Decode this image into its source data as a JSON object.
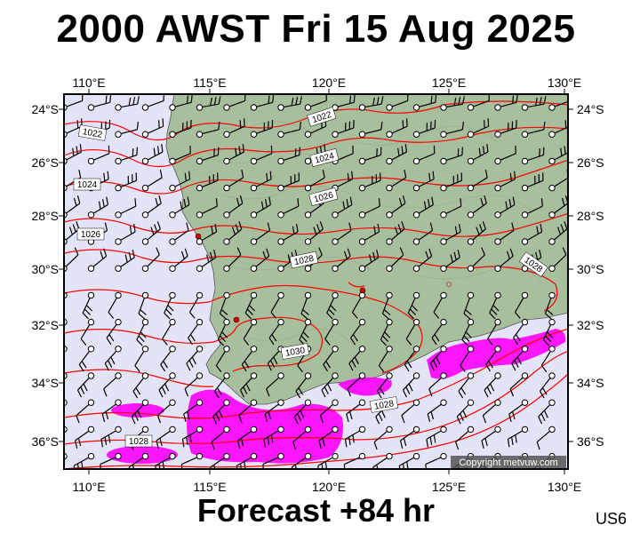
{
  "header": {
    "title": "2000 AWST Fri 15 Aug 2025",
    "subtitle": "Forecast +84 hr",
    "code": "US6"
  },
  "map": {
    "lon_labels": [
      "110°E",
      "115°E",
      "120°E",
      "125°E",
      "130°E"
    ],
    "lat_labels": [
      "24°S",
      "26°S",
      "28°S",
      "30°S",
      "32°S",
      "34°S",
      "36°S"
    ],
    "isobar_labels": [
      "1022",
      "1022",
      "1024",
      "1024",
      "1026",
      "1026",
      "1028",
      "1028",
      "1028",
      "1028",
      "1030",
      "1028"
    ],
    "copyright": "Copyright metvuw.com",
    "colors": {
      "ocean": "#e4e4f8",
      "land": "#a8bf9e",
      "isobar": "#ff0000",
      "rain": "#ff00ff",
      "barb": "#000000",
      "frame": "#000000"
    }
  }
}
